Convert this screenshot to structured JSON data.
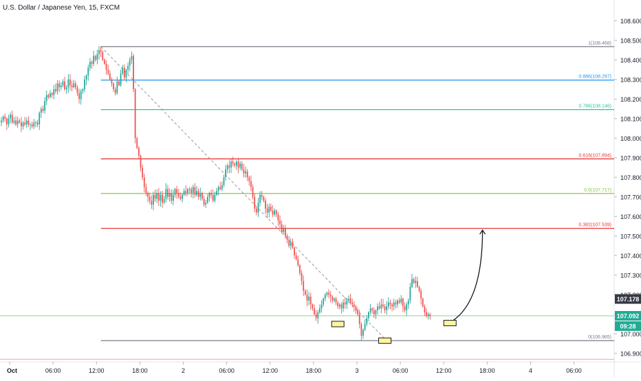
{
  "header": {
    "symbol_title": "U.S. Dollar / Japanese Yen, 15, FXCM"
  },
  "chart_data": {
    "type": "candlestick",
    "symbol": "U.S. Dollar / Japanese Yen",
    "interval": "15",
    "source": "FXCM",
    "x_axis": {
      "ticks": [
        {
          "label": "Oct",
          "i": 0
        },
        {
          "label": "06:00",
          "i": 24
        },
        {
          "label": "12:00",
          "i": 48
        },
        {
          "label": "18:00",
          "i": 72
        },
        {
          "label": "2",
          "i": 96
        },
        {
          "label": "06:00",
          "i": 120
        },
        {
          "label": "12:00",
          "i": 144
        },
        {
          "label": "18:00",
          "i": 168
        },
        {
          "label": "3",
          "i": 192
        },
        {
          "label": "06:00",
          "i": 216
        },
        {
          "label": "12:00",
          "i": 240
        },
        {
          "label": "18:00",
          "i": 264
        },
        {
          "label": "4",
          "i": 288
        },
        {
          "label": "06:00",
          "i": 312
        }
      ]
    },
    "y_axis": {
      "min": 106.85,
      "max": 108.65,
      "ticks": [
        "106.900",
        "107.000",
        "107.100",
        "107.200",
        "107.300",
        "107.400",
        "107.500",
        "107.600",
        "107.700",
        "107.800",
        "107.900",
        "108.000",
        "108.100",
        "108.200",
        "108.300",
        "108.400",
        "108.500",
        "108.600"
      ]
    },
    "fibonacci": [
      {
        "label": "1(108.468)",
        "value": 108.468,
        "color": "#787b86"
      },
      {
        "label": "0.886(108.297)",
        "value": 108.297,
        "color": "#2196f3"
      },
      {
        "label": "0.786(108.146)",
        "value": 108.146,
        "color": "#26c6a0"
      },
      {
        "label": "0.618(107.894)",
        "value": 107.894,
        "color": "#e53935"
      },
      {
        "label": "0.5(107.717)",
        "value": 107.717,
        "color": "#8bc34a"
      },
      {
        "label": "0.382(107.539)",
        "value": 107.539,
        "color": "#e53935"
      },
      {
        "label": "0(106.965)",
        "value": 106.965,
        "color": "#787b86"
      }
    ],
    "fib_start_i": 55,
    "trendline": {
      "i1": 55,
      "v1": 108.468,
      "i2": 213,
      "v2": 106.965
    },
    "price_labels": [
      {
        "text": "107.178",
        "value": 107.178,
        "bg": "#363a45",
        "fg": "#ffffff"
      },
      {
        "text": "107.092",
        "value": 107.092,
        "bg": "#22ab94",
        "fg": "#ffffff"
      },
      {
        "text": "09:28",
        "value": 107.02,
        "bg": "#22ab94",
        "fg": "#ffffff"
      }
    ],
    "current_price_line": {
      "value": 107.092,
      "color": "#4caf50"
    },
    "lower_line": {
      "value": 106.87,
      "color": "#ef9a9a"
    },
    "highlight_boxes": [
      {
        "i": 186,
        "value": 107.05,
        "color": "#fff59d"
      },
      {
        "i": 212,
        "value": 106.965,
        "color": "#fff59d"
      },
      {
        "i": 248,
        "value": 107.055,
        "color": "#fff59d"
      }
    ],
    "projection_arrow": {
      "i1": 250,
      "v1": 107.07,
      "i2": 266,
      "v2": 107.53
    },
    "candles_start_i": 0,
    "closes": [
      108.09,
      108.11,
      108.1,
      108.07,
      108.1,
      108.12,
      108.08,
      108.09,
      108.07,
      108.09,
      108.08,
      108.06,
      108.08,
      108.07,
      108.09,
      108.07,
      108.07,
      108.06,
      108.08,
      108.08,
      108.07,
      108.13,
      108.15,
      108.14,
      108.19,
      108.22,
      108.21,
      108.23,
      108.22,
      108.25,
      108.24,
      108.28,
      108.26,
      108.27,
      108.29,
      108.25,
      108.26,
      108.3,
      108.27,
      108.26,
      108.28,
      108.26,
      108.23,
      108.2,
      108.24,
      108.25,
      108.3,
      108.32,
      108.36,
      108.39,
      108.38,
      108.42,
      108.4,
      108.43,
      108.45,
      108.44,
      108.4,
      108.38,
      108.35,
      108.33,
      108.3,
      108.28,
      108.25,
      108.23,
      108.29,
      108.27,
      108.33,
      108.36,
      108.31,
      108.35,
      108.37,
      108.4,
      108.42,
      108.25,
      108.0,
      107.95,
      107.91,
      107.85,
      107.8,
      107.75,
      107.72,
      107.7,
      107.68,
      107.66,
      107.71,
      107.69,
      107.72,
      107.68,
      107.71,
      107.67,
      107.69,
      107.74,
      107.7,
      107.72,
      107.68,
      107.71,
      107.74,
      107.72,
      107.7,
      107.69,
      107.71,
      107.73,
      107.72,
      107.74,
      107.74,
      107.72,
      107.75,
      107.71,
      107.73,
      107.7,
      107.72,
      107.69,
      107.66,
      107.67,
      107.7,
      107.72,
      107.71,
      107.68,
      107.71,
      107.73,
      107.75,
      107.74,
      107.76,
      107.8,
      107.84,
      107.86,
      107.85,
      107.88,
      107.87,
      107.86,
      107.88,
      107.85,
      107.87,
      107.84,
      107.82,
      107.83,
      107.8,
      107.78,
      107.75,
      107.7,
      107.64,
      107.62,
      107.67,
      107.71,
      107.7,
      107.68,
      107.64,
      107.62,
      107.65,
      107.63,
      107.61,
      107.63,
      107.61,
      107.58,
      107.56,
      107.52,
      107.54,
      107.5,
      107.48,
      107.45,
      107.47,
      107.44,
      107.4,
      107.38,
      107.35,
      107.31,
      107.27,
      107.22,
      107.2,
      107.17,
      107.19,
      107.15,
      107.13,
      107.1,
      107.08,
      107.11,
      107.13,
      107.15,
      107.18,
      107.2,
      107.21,
      107.2,
      107.19,
      107.17,
      107.18,
      107.16,
      107.14,
      107.15,
      107.13,
      107.16,
      107.15,
      107.17,
      107.18,
      107.16,
      107.15,
      107.14,
      107.12,
      107.1,
      107.05,
      106.99,
      107.02,
      107.05,
      107.08,
      107.11,
      107.13,
      107.12,
      107.1,
      107.12,
      107.14,
      107.13,
      107.15,
      107.14,
      107.12,
      107.14,
      107.16,
      107.15,
      107.14,
      107.16,
      107.15,
      107.17,
      107.16,
      107.18,
      107.14,
      107.12,
      107.15,
      107.17,
      107.24,
      107.28,
      107.26,
      107.27,
      107.24,
      107.22,
      107.18,
      107.14,
      107.11,
      107.09,
      107.1,
      107.09
    ]
  }
}
